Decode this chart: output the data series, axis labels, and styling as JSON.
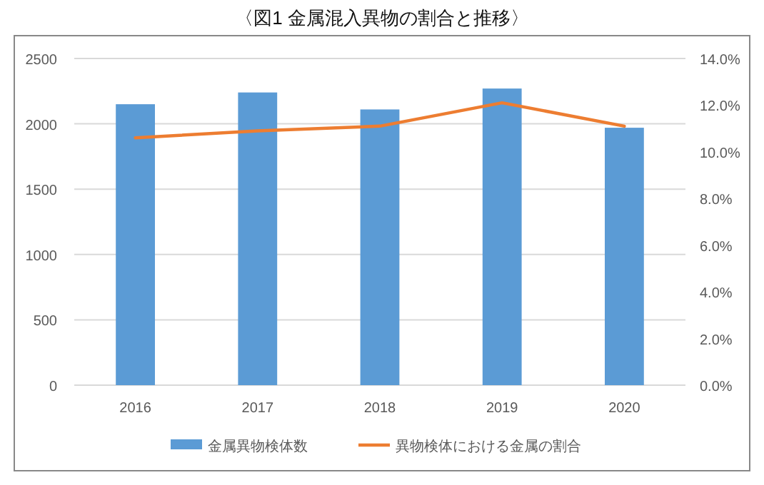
{
  "chart_data": {
    "type": "bar",
    "title": "〈図1 金属混入異物の割合と推移〉",
    "categories": [
      "2016",
      "2017",
      "2018",
      "2019",
      "2020"
    ],
    "series": [
      {
        "name": "金属異物検体数",
        "color": "#5b9bd5",
        "values": [
          2150,
          2240,
          2110,
          2270,
          1970
        ]
      },
      {
        "name": "異物検体における金属の割合",
        "color": "#ed7d31",
        "type": "line",
        "axis": "y2",
        "values": [
          10.6,
          10.9,
          11.1,
          12.1,
          11.1
        ]
      }
    ],
    "ylim": [
      0,
      2500
    ],
    "yticks": [
      0,
      500,
      1000,
      1500,
      2000,
      2500
    ],
    "y2lim": [
      0,
      14
    ],
    "y2ticks": [
      {
        "value": 0,
        "label": "0.0%"
      },
      {
        "value": 2,
        "label": "2.0%"
      },
      {
        "value": 4,
        "label": "4.0%"
      },
      {
        "value": 6,
        "label": "6.0%"
      },
      {
        "value": 8,
        "label": "8.0%"
      },
      {
        "value": 10,
        "label": "10.0%"
      },
      {
        "value": 12,
        "label": "12.0%"
      },
      {
        "value": 14,
        "label": "14.0%"
      }
    ],
    "grid": "y",
    "legend": "bottom",
    "marker": "none",
    "line_style": "solid"
  }
}
